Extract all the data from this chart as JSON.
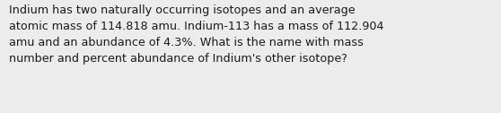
{
  "text": "Indium has two naturally occurring isotopes and an average\natomic mass of 114.818 amu. Indium-113 has a mass of 112.904\namu and an abundance of 4.3%. What is the name with mass\nnumber and percent abundance of Indium's other isotope?",
  "background_color": "#ececec",
  "text_color": "#1a1a1a",
  "font_size": 9.2,
  "fig_width": 5.58,
  "fig_height": 1.26,
  "dpi": 100
}
